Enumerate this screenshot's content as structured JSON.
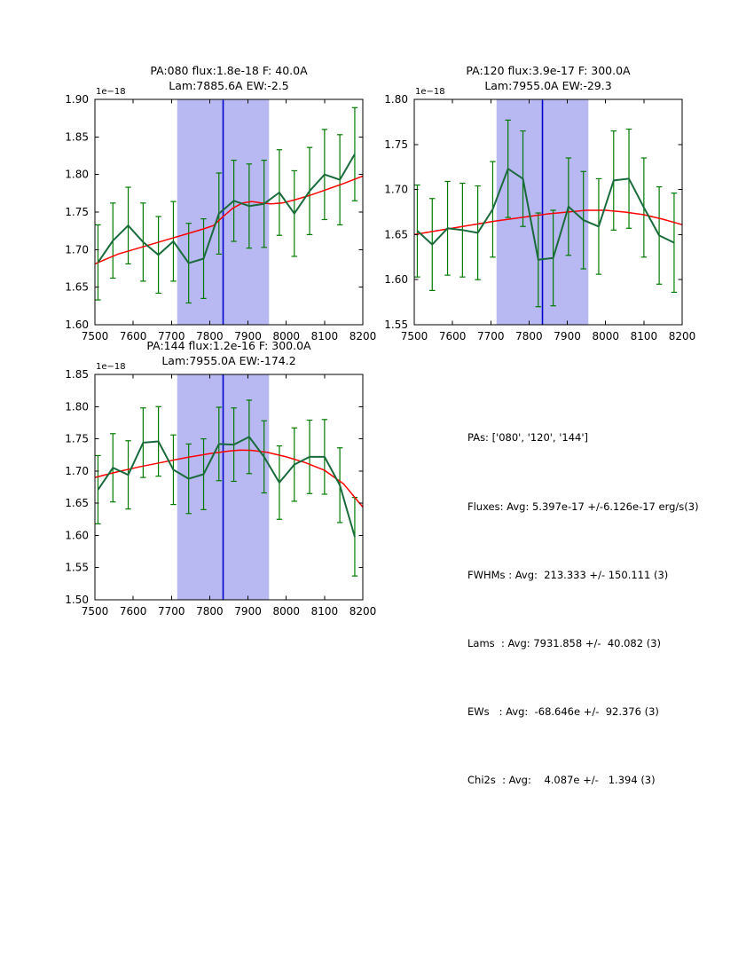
{
  "figure": {
    "background": "#ffffff"
  },
  "colors": {
    "data_line": "#1a6b3c",
    "error_bar": "#007a00",
    "fit_line": "#ff0000",
    "band_fill": "#b8b8f2",
    "center_line": "#0000cc",
    "axis": "#000000"
  },
  "summary": {
    "pas": "PAs: ['080', '120', '144']",
    "fluxes": "Fluxes: Avg: 5.397e-17 +/-6.126e-17 erg/s(3)",
    "fwhms": "FWHMs : Avg:  213.333 +/- 150.111 (3)",
    "lams": "Lams  : Avg: 7931.858 +/-  40.082 (3)",
    "ews": "EWs   : Avg:  -68.646e +/-  92.376 (3)",
    "chi2s": "Chi2s  : Avg:    4.087e +/-   1.394 (3)"
  },
  "chart_data": [
    {
      "type": "line",
      "title_line1": "PA:080 flux:1.8e-18 F: 40.0A",
      "title_line2": "Lam:7885.6A EW:-2.5",
      "offset_label": "1e−18",
      "xlabel": "",
      "ylabel": "",
      "xlim": [
        7500,
        8200
      ],
      "ylim": [
        1.6,
        1.9
      ],
      "xticks": [
        "7500",
        "7600",
        "7700",
        "7800",
        "7900",
        "8000",
        "8100",
        "8200"
      ],
      "yticks": [
        "1.60",
        "1.65",
        "1.70",
        "1.75",
        "1.80",
        "1.85",
        "1.90"
      ],
      "grid": false,
      "legend": false,
      "band_x": [
        7715,
        7955
      ],
      "center_x": 7835,
      "x": [
        7508,
        7547,
        7587,
        7626,
        7666,
        7705,
        7745,
        7784,
        7824,
        7863,
        7903,
        7942,
        7982,
        8021,
        8061,
        8100,
        8140,
        8179
      ],
      "y": [
        1.683,
        1.712,
        1.732,
        1.71,
        1.693,
        1.711,
        1.682,
        1.688,
        1.748,
        1.765,
        1.758,
        1.761,
        1.776,
        1.748,
        1.778,
        1.8,
        1.793,
        1.827
      ],
      "yerr": [
        0.05,
        0.05,
        0.051,
        0.052,
        0.051,
        0.053,
        0.053,
        0.053,
        0.054,
        0.054,
        0.056,
        0.058,
        0.057,
        0.057,
        0.058,
        0.06,
        0.06,
        0.062
      ],
      "fit_x": [
        7500,
        7560,
        7620,
        7680,
        7740,
        7780,
        7810,
        7835,
        7860,
        7885,
        7910,
        7935,
        7960,
        7990,
        8020,
        8060,
        8100,
        8150,
        8200
      ],
      "fit_y": [
        1.681,
        1.694,
        1.703,
        1.712,
        1.721,
        1.727,
        1.732,
        1.744,
        1.755,
        1.762,
        1.764,
        1.762,
        1.761,
        1.762,
        1.766,
        1.772,
        1.779,
        1.788,
        1.798
      ]
    },
    {
      "type": "line",
      "title_line1": "PA:120 flux:3.9e-17 F: 300.0A",
      "title_line2": "Lam:7955.0A EW:-29.3",
      "offset_label": "1e−18",
      "xlabel": "",
      "ylabel": "",
      "xlim": [
        7500,
        8200
      ],
      "ylim": [
        1.55,
        1.8
      ],
      "xticks": [
        "7500",
        "7600",
        "7700",
        "7800",
        "7900",
        "8000",
        "8100",
        "8200"
      ],
      "yticks": [
        "1.55",
        "1.60",
        "1.65",
        "1.70",
        "1.75",
        "1.80"
      ],
      "grid": false,
      "legend": false,
      "band_x": [
        7715,
        7955
      ],
      "center_x": 7835,
      "x": [
        7508,
        7547,
        7587,
        7626,
        7666,
        7705,
        7745,
        7784,
        7824,
        7863,
        7903,
        7942,
        7982,
        8021,
        8061,
        8100,
        8140,
        8179
      ],
      "y": [
        1.654,
        1.639,
        1.657,
        1.655,
        1.652,
        1.678,
        1.723,
        1.712,
        1.622,
        1.624,
        1.681,
        1.666,
        1.659,
        1.71,
        1.712,
        1.68,
        1.649,
        1.641
      ],
      "yerr": [
        0.051,
        0.051,
        0.052,
        0.052,
        0.052,
        0.053,
        0.054,
        0.053,
        0.052,
        0.053,
        0.054,
        0.054,
        0.053,
        0.055,
        0.055,
        0.055,
        0.054,
        0.055
      ],
      "fit_x": [
        7500,
        7570,
        7640,
        7710,
        7780,
        7850,
        7900,
        7950,
        8000,
        8050,
        8100,
        8150,
        8200
      ],
      "fit_y": [
        1.65,
        1.655,
        1.66,
        1.665,
        1.669,
        1.673,
        1.675,
        1.677,
        1.677,
        1.675,
        1.672,
        1.667,
        1.661
      ]
    },
    {
      "type": "line",
      "title_line1": "PA:144 flux:1.2e-16 F: 300.0A",
      "title_line2": "Lam:7955.0A EW:-174.2",
      "offset_label": "1e−18",
      "xlabel": "",
      "ylabel": "",
      "xlim": [
        7500,
        8200
      ],
      "ylim": [
        1.5,
        1.85
      ],
      "xticks": [
        "7500",
        "7600",
        "7700",
        "7800",
        "7900",
        "8000",
        "8100",
        "8200"
      ],
      "yticks": [
        "1.50",
        "1.55",
        "1.60",
        "1.65",
        "1.70",
        "1.75",
        "1.80",
        "1.85"
      ],
      "grid": false,
      "legend": false,
      "band_x": [
        7715,
        7955
      ],
      "center_x": 7835,
      "x": [
        7508,
        7547,
        7587,
        7626,
        7666,
        7705,
        7745,
        7784,
        7824,
        7863,
        7903,
        7942,
        7982,
        8021,
        8061,
        8100,
        8140,
        8179
      ],
      "y": [
        1.671,
        1.705,
        1.694,
        1.744,
        1.746,
        1.702,
        1.688,
        1.695,
        1.742,
        1.741,
        1.753,
        1.722,
        1.682,
        1.71,
        1.722,
        1.722,
        1.678,
        1.598
      ],
      "yerr": [
        0.053,
        0.053,
        0.053,
        0.054,
        0.054,
        0.054,
        0.054,
        0.055,
        0.057,
        0.057,
        0.057,
        0.056,
        0.057,
        0.057,
        0.057,
        0.058,
        0.058,
        0.061
      ],
      "fit_x": [
        7500,
        7560,
        7620,
        7680,
        7740,
        7800,
        7850,
        7880,
        7910,
        7950,
        8000,
        8050,
        8100,
        8150,
        8200
      ],
      "fit_y": [
        1.69,
        1.699,
        1.707,
        1.714,
        1.721,
        1.727,
        1.731,
        1.7325,
        1.732,
        1.729,
        1.722,
        1.713,
        1.701,
        1.68,
        1.644
      ]
    }
  ]
}
